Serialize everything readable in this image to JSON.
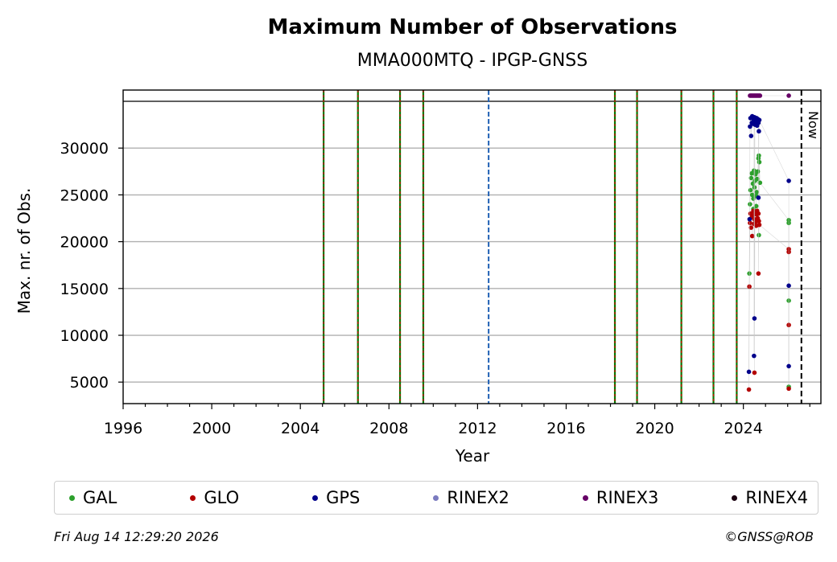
{
  "chart_data": {
    "type": "scatter",
    "title": "Maximum Number of Observations",
    "subtitle": "MMA000MTQ - IPGP-GNSS",
    "xlabel": "Year",
    "ylabel": "Max. nr. of Obs.",
    "xlim": [
      1996,
      2027.5
    ],
    "ylim": [
      2700,
      36200
    ],
    "x_ticks": [
      "1996",
      "2000",
      "2004",
      "2008",
      "2012",
      "2016",
      "2020",
      "2024"
    ],
    "y_ticks": [
      "5000",
      "10000",
      "15000",
      "20000",
      "25000",
      "30000"
    ],
    "grid": "horizontal",
    "top_line": 35000,
    "now_label": "Now",
    "now_x": 2026.62,
    "vertical_events": [
      {
        "x": 2005.05,
        "style": "green-red-dashed"
      },
      {
        "x": 2006.6,
        "style": "green-red-dashed"
      },
      {
        "x": 2008.5,
        "style": "green-red-dashed"
      },
      {
        "x": 2009.55,
        "style": "green-red-dashed"
      },
      {
        "x": 2012.5,
        "style": "blue-dashed"
      },
      {
        "x": 2018.2,
        "style": "green-red-dashed"
      },
      {
        "x": 2019.2,
        "style": "green-red-dashed"
      },
      {
        "x": 2021.2,
        "style": "green-red-dashed"
      },
      {
        "x": 2022.65,
        "style": "green-red-dashed"
      },
      {
        "x": 2023.7,
        "style": "green-red-dashed"
      }
    ],
    "series": [
      {
        "name": "GAL",
        "color": "#2ca02c",
        "points": [
          [
            2024.27,
            16600
          ],
          [
            2024.3,
            24000
          ],
          [
            2024.32,
            25500
          ],
          [
            2024.35,
            26800
          ],
          [
            2024.38,
            27300
          ],
          [
            2024.4,
            25000
          ],
          [
            2024.43,
            26200
          ],
          [
            2024.45,
            24600
          ],
          [
            2024.48,
            27600
          ],
          [
            2024.5,
            25800
          ],
          [
            2024.52,
            26500
          ],
          [
            2024.55,
            27200
          ],
          [
            2024.58,
            24900
          ],
          [
            2024.6,
            25300
          ],
          [
            2024.62,
            26700
          ],
          [
            2024.65,
            27500
          ],
          [
            2024.68,
            28900
          ],
          [
            2024.7,
            29200
          ],
          [
            2024.72,
            28500
          ],
          [
            2024.75,
            26300
          ],
          [
            2024.58,
            23800
          ],
          [
            2024.45,
            23500
          ],
          [
            2024.7,
            20700
          ],
          [
            2026.05,
            22300
          ],
          [
            2026.05,
            22000
          ],
          [
            2026.05,
            13700
          ],
          [
            2026.05,
            4500
          ]
        ]
      },
      {
        "name": "GLO",
        "color": "#b30000",
        "points": [
          [
            2024.25,
            4200
          ],
          [
            2024.27,
            15200
          ],
          [
            2024.3,
            22000
          ],
          [
            2024.32,
            23000
          ],
          [
            2024.35,
            21500
          ],
          [
            2024.38,
            22600
          ],
          [
            2024.4,
            20600
          ],
          [
            2024.42,
            22800
          ],
          [
            2024.45,
            23300
          ],
          [
            2024.48,
            21900
          ],
          [
            2024.5,
            22400
          ],
          [
            2024.52,
            23100
          ],
          [
            2024.55,
            22100
          ],
          [
            2024.58,
            21700
          ],
          [
            2024.6,
            22900
          ],
          [
            2024.62,
            23300
          ],
          [
            2024.65,
            22500
          ],
          [
            2024.68,
            23000
          ],
          [
            2024.7,
            22200
          ],
          [
            2024.72,
            21800
          ],
          [
            2024.5,
            6000
          ],
          [
            2024.68,
            16600
          ],
          [
            2026.05,
            19200
          ],
          [
            2026.05,
            18900
          ],
          [
            2026.05,
            11100
          ],
          [
            2026.05,
            4300
          ]
        ]
      },
      {
        "name": "GPS",
        "color": "#00008b",
        "points": [
          [
            2024.25,
            6100
          ],
          [
            2024.28,
            22400
          ],
          [
            2024.3,
            32300
          ],
          [
            2024.32,
            33200
          ],
          [
            2024.35,
            31300
          ],
          [
            2024.38,
            32700
          ],
          [
            2024.4,
            33400
          ],
          [
            2024.42,
            32600
          ],
          [
            2024.45,
            33100
          ],
          [
            2024.48,
            32900
          ],
          [
            2024.5,
            33300
          ],
          [
            2024.52,
            32500
          ],
          [
            2024.55,
            33000
          ],
          [
            2024.58,
            32800
          ],
          [
            2024.6,
            33200
          ],
          [
            2024.62,
            32400
          ],
          [
            2024.65,
            33100
          ],
          [
            2024.68,
            32700
          ],
          [
            2024.7,
            31800
          ],
          [
            2024.72,
            33000
          ],
          [
            2024.5,
            11800
          ],
          [
            2024.48,
            7800
          ],
          [
            2024.68,
            24700
          ],
          [
            2026.05,
            26500
          ],
          [
            2026.05,
            15300
          ],
          [
            2026.05,
            6700
          ]
        ]
      },
      {
        "name": "RINEX2",
        "color": "#7b7bbf",
        "points": []
      },
      {
        "name": "RINEX3",
        "color": "#660066",
        "points": [
          [
            2024.3,
            35600
          ],
          [
            2024.35,
            35600
          ],
          [
            2024.4,
            35600
          ],
          [
            2024.45,
            35600
          ],
          [
            2024.5,
            35600
          ],
          [
            2024.55,
            35600
          ],
          [
            2024.6,
            35600
          ],
          [
            2024.65,
            35600
          ],
          [
            2024.7,
            35600
          ],
          [
            2024.75,
            35600
          ],
          [
            2026.05,
            35600
          ]
        ]
      },
      {
        "name": "RINEX4",
        "color": "#1a0010",
        "points": []
      }
    ]
  },
  "footer": {
    "timestamp": "Fri Aug 14 12:29:20 2026",
    "credit": "©GNSS@ROB"
  }
}
